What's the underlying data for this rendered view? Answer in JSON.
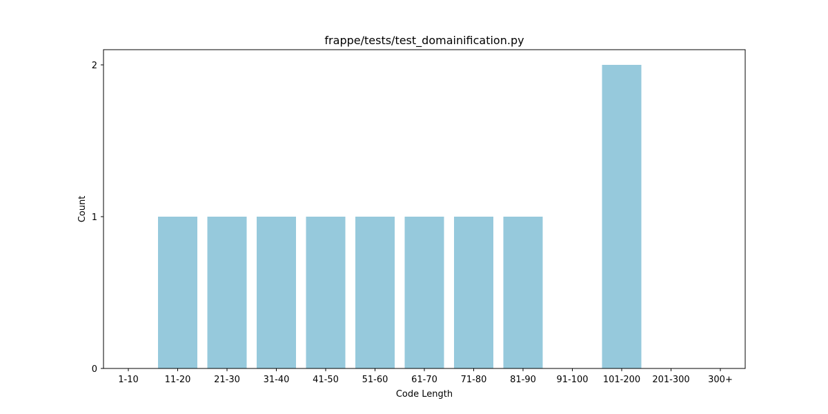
{
  "chart_data": {
    "type": "bar",
    "title": "frappe/tests/test_domainification.py",
    "xlabel": "Code Length",
    "ylabel": "Count",
    "categories": [
      "1-10",
      "11-20",
      "21-30",
      "31-40",
      "41-50",
      "51-60",
      "61-70",
      "71-80",
      "81-90",
      "91-100",
      "101-200",
      "201-300",
      "300+"
    ],
    "values": [
      0,
      1,
      1,
      1,
      1,
      1,
      1,
      1,
      1,
      0,
      2,
      0,
      0
    ],
    "yticks": [
      0,
      1,
      2
    ],
    "ylim": [
      0,
      2.1
    ],
    "grid": false,
    "bar_color": "#96c9dc"
  }
}
